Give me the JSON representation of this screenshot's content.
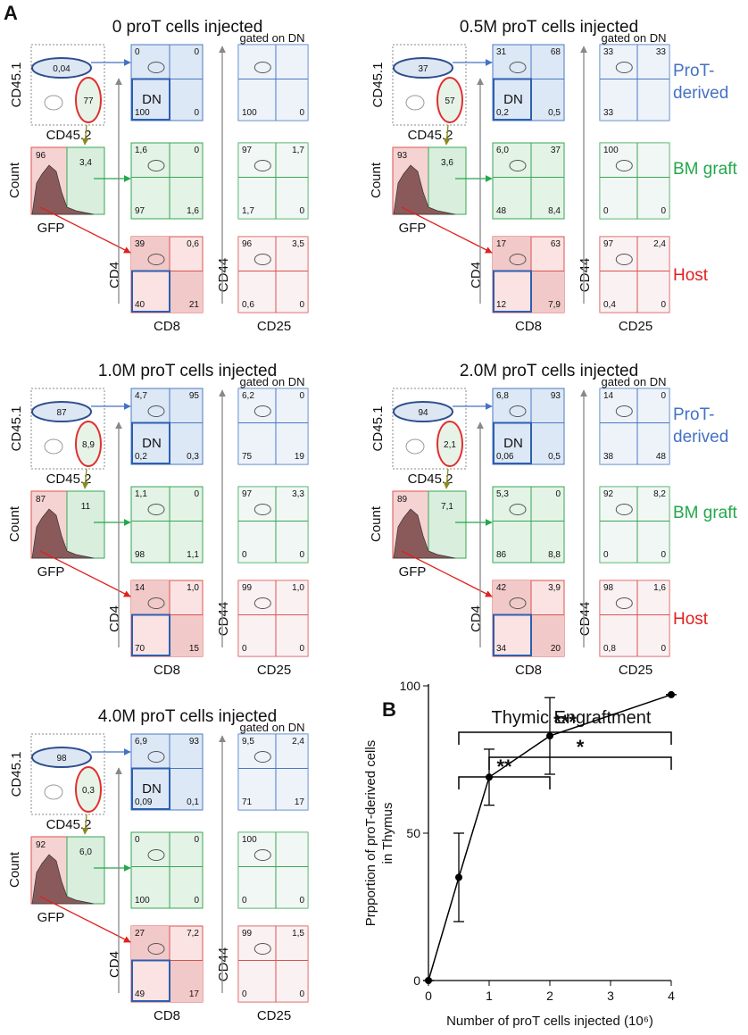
{
  "panel_a": {
    "label": "A",
    "gate_label": "gated on DN",
    "dn_label": "DN",
    "axis_labels": {
      "cd45_1": "CD45.1",
      "cd45_2": "CD45.2",
      "count": "Count",
      "gfp": "GFP",
      "cd4": "CD4",
      "cd8": "CD8",
      "cd44": "CD44",
      "cd25": "CD25"
    },
    "row_labels": [
      "ProT-derived",
      "BM graft",
      "Host"
    ],
    "groups": [
      {
        "title": "0 proT cells injected",
        "show_row_labels": false,
        "cd45": {
          "cd45_1": "0,04",
          "cd45_2": "77"
        },
        "gfp": {
          "neg": "96",
          "pos": "3,4"
        },
        "rows": [
          {
            "cd4_cd8": {
              "tl": "0",
              "tr": "0",
              "bl": "100",
              "br": "0"
            },
            "cd44_cd25": {
              "bl": "100",
              "br": "0"
            }
          },
          {
            "cd4_cd8": {
              "tl": "1,6",
              "tr": "0",
              "bl": "97",
              "br": "1,6"
            },
            "cd44_cd25": {
              "tl": "97",
              "tr": "1,7",
              "bl": "1,7",
              "br": "0"
            }
          },
          {
            "cd4_cd8": {
              "tl": "39",
              "tr": "0,6",
              "bl": "40",
              "br": "21"
            },
            "cd44_cd25": {
              "tl": "96",
              "tr": "3,5",
              "bl": "0,6",
              "br": "0"
            }
          }
        ]
      },
      {
        "title": "0.5M proT cells injected",
        "show_row_labels": true,
        "cd45": {
          "cd45_1": "37",
          "cd45_2": "57"
        },
        "gfp": {
          "neg": "93",
          "pos": "3,6"
        },
        "rows": [
          {
            "cd4_cd8": {
              "tl": "31",
              "tr": "68",
              "bl": "0,2",
              "br": "0,5"
            },
            "cd44_cd25": {
              "tl": "33",
              "tr": "33",
              "bl": "33"
            }
          },
          {
            "cd4_cd8": {
              "tl": "6,0",
              "tr": "37",
              "bl": "48",
              "br": "8,4"
            },
            "cd44_cd25": {
              "tl": "100",
              "bl": "0",
              "br": "0"
            }
          },
          {
            "cd4_cd8": {
              "tl": "17",
              "tr": "63",
              "bl": "12",
              "br": "7,9"
            },
            "cd44_cd25": {
              "tl": "97",
              "tr": "2,4",
              "bl": "0,4",
              "br": "0"
            }
          }
        ]
      },
      {
        "title": "1.0M proT cells injected",
        "show_row_labels": false,
        "cd45": {
          "cd45_1": "87",
          "cd45_2": "8,9"
        },
        "gfp": {
          "neg": "87",
          "pos": "11"
        },
        "rows": [
          {
            "cd4_cd8": {
              "tl": "4,7",
              "tr": "95",
              "bl": "0,2",
              "br": "0,3"
            },
            "cd44_cd25": {
              "tl": "6,2",
              "tr": "0",
              "bl": "75",
              "br": "19"
            }
          },
          {
            "cd4_cd8": {
              "tl": "1,1",
              "tr": "0",
              "bl": "98",
              "br": "1,1"
            },
            "cd44_cd25": {
              "tl": "97",
              "tr": "3,3",
              "bl": "0",
              "br": "0"
            }
          },
          {
            "cd4_cd8": {
              "tl": "14",
              "tr": "1,0",
              "bl": "70",
              "br": "15"
            },
            "cd44_cd25": {
              "tl": "99",
              "tr": "1,0",
              "bl": "0",
              "br": "0"
            }
          }
        ]
      },
      {
        "title": "2.0M proT cells injected",
        "show_row_labels": true,
        "cd45": {
          "cd45_1": "94",
          "cd45_2": "2,1"
        },
        "gfp": {
          "neg": "89",
          "pos": "7,1"
        },
        "rows": [
          {
            "cd4_cd8": {
              "tl": "6,8",
              "tr": "93",
              "bl": "0,06",
              "br": "0,5"
            },
            "cd44_cd25": {
              "tl": "14",
              "tr": "0",
              "bl": "38",
              "br": "48"
            }
          },
          {
            "cd4_cd8": {
              "tl": "5,3",
              "tr": "0",
              "bl": "86",
              "br": "8,8"
            },
            "cd44_cd25": {
              "tl": "92",
              "tr": "8,2",
              "bl": "0",
              "br": "0"
            }
          },
          {
            "cd4_cd8": {
              "tl": "42",
              "tr": "3,9",
              "bl": "34",
              "br": "20"
            },
            "cd44_cd25": {
              "tl": "98",
              "tr": "1,6",
              "bl": "0,8",
              "br": "0"
            }
          }
        ]
      },
      {
        "title": "4.0M proT cells injected",
        "show_row_labels": false,
        "cd45": {
          "cd45_1": "98",
          "cd45_2": "0,3"
        },
        "gfp": {
          "neg": "92",
          "pos": "6,0"
        },
        "rows": [
          {
            "cd4_cd8": {
              "tl": "6,9",
              "tr": "93",
              "bl": "0,09",
              "br": "0,1"
            },
            "cd44_cd25": {
              "tl": "9,5",
              "tr": "2,4",
              "bl": "71",
              "br": "17"
            }
          },
          {
            "cd4_cd8": {
              "tl": "0",
              "tr": "0",
              "bl": "100",
              "br": "0"
            },
            "cd44_cd25": {
              "tl": "100",
              "bl": "0",
              "br": "0"
            }
          },
          {
            "cd4_cd8": {
              "tl": "27",
              "tr": "7,2",
              "bl": "49",
              "br": "17"
            },
            "cd44_cd25": {
              "tl": "99",
              "tr": "1,5",
              "bl": "0",
              "br": "0"
            }
          }
        ]
      }
    ]
  },
  "chart_data": {
    "type": "line",
    "panel_label": "B",
    "title": "Thymic Engraftment",
    "x_label": "Number of proT cells injected (10⁶)",
    "y_label": [
      "Prpportion of proT-derived cells",
      "in Thymus"
    ],
    "x": [
      0,
      0.5,
      1,
      2,
      4
    ],
    "values": [
      0,
      35,
      69,
      83,
      97
    ],
    "errors": [
      0,
      15,
      9.5,
      13,
      0
    ],
    "color": "#000000",
    "xlim": [
      0,
      4
    ],
    "xticks": [
      0,
      1,
      2,
      3,
      4
    ],
    "ylim": [
      0,
      100
    ],
    "yticks": [
      0,
      50,
      100
    ],
    "significance": [
      {
        "label": "***",
        "x": [
          0.5,
          4
        ]
      },
      {
        "label": "*",
        "x": [
          1,
          4
        ]
      },
      {
        "label": "**",
        "x": [
          0.5,
          2
        ]
      }
    ]
  }
}
